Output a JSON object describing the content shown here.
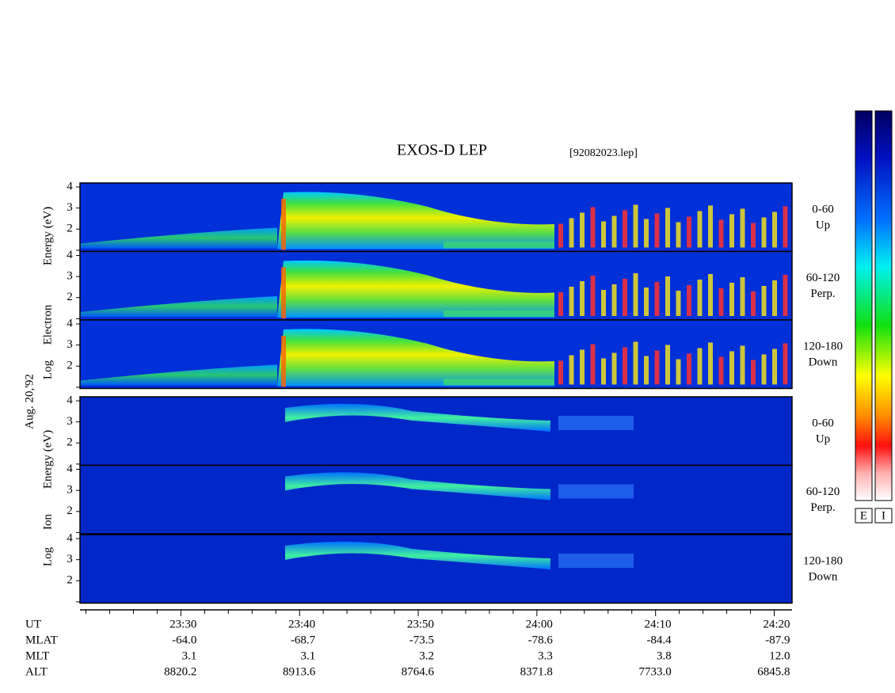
{
  "title": "EXOS-D LEP",
  "file": "[92082023.lep]",
  "date": "Aug. 20,'92",
  "electron": {
    "axis_label": [
      "Log",
      "Electron",
      "Energy (eV)"
    ],
    "panels": [
      {
        "range": "0-60",
        "direction": "Up"
      },
      {
        "range": "60-120",
        "direction": "Perp."
      },
      {
        "range": "120-180",
        "direction": "Down"
      }
    ]
  },
  "ion": {
    "axis_label": [
      "Log",
      "Ion",
      "Energy (eV)"
    ],
    "panels": [
      {
        "range": "0-60",
        "direction": "Up"
      },
      {
        "range": "60-120",
        "direction": "Perp."
      },
      {
        "range": "120-180",
        "direction": "Down"
      }
    ]
  },
  "energy_axis": {
    "ylim": [
      0.94,
      4.19
    ],
    "yticks": [
      2,
      3,
      4
    ],
    "minor_yticks": [
      1
    ]
  },
  "time_axis": {
    "xlim": [
      1401.5,
      1461.5
    ],
    "xticks": [
      {
        "value": 1410,
        "label": "23:30"
      },
      {
        "value": 1420,
        "label": "23:40"
      },
      {
        "value": 1430,
        "label": "23:50"
      },
      {
        "value": 1440,
        "label": "24:00"
      },
      {
        "value": 1450,
        "label": "24:10"
      },
      {
        "value": 1460,
        "label": "24:20"
      }
    ],
    "minor_xticks": [
      1402,
      1404,
      1406,
      1408,
      1412,
      1414,
      1416,
      1418,
      1422,
      1424,
      1426,
      1428,
      1432,
      1434,
      1436,
      1438,
      1442,
      1444,
      1446,
      1448,
      1452,
      1454,
      1456,
      1458
    ]
  },
  "ephemeris": {
    "ut_label": "UT",
    "rows": [
      {
        "name": "MLAT",
        "values": [
          "-64.0",
          "-68.7",
          "-73.5",
          "-78.6",
          "-84.4",
          "-87.9"
        ]
      },
      {
        "name": "MLT",
        "values": [
          "3.1",
          "3.1",
          "3.2",
          "3.3",
          "3.8",
          "12.0"
        ]
      },
      {
        "name": "ALT",
        "values": [
          "8820.2",
          "8913.6",
          "8764.6",
          "8371.8",
          "7733.0",
          "6845.8"
        ]
      }
    ]
  },
  "colorbars": [
    "E",
    "I"
  ]
}
